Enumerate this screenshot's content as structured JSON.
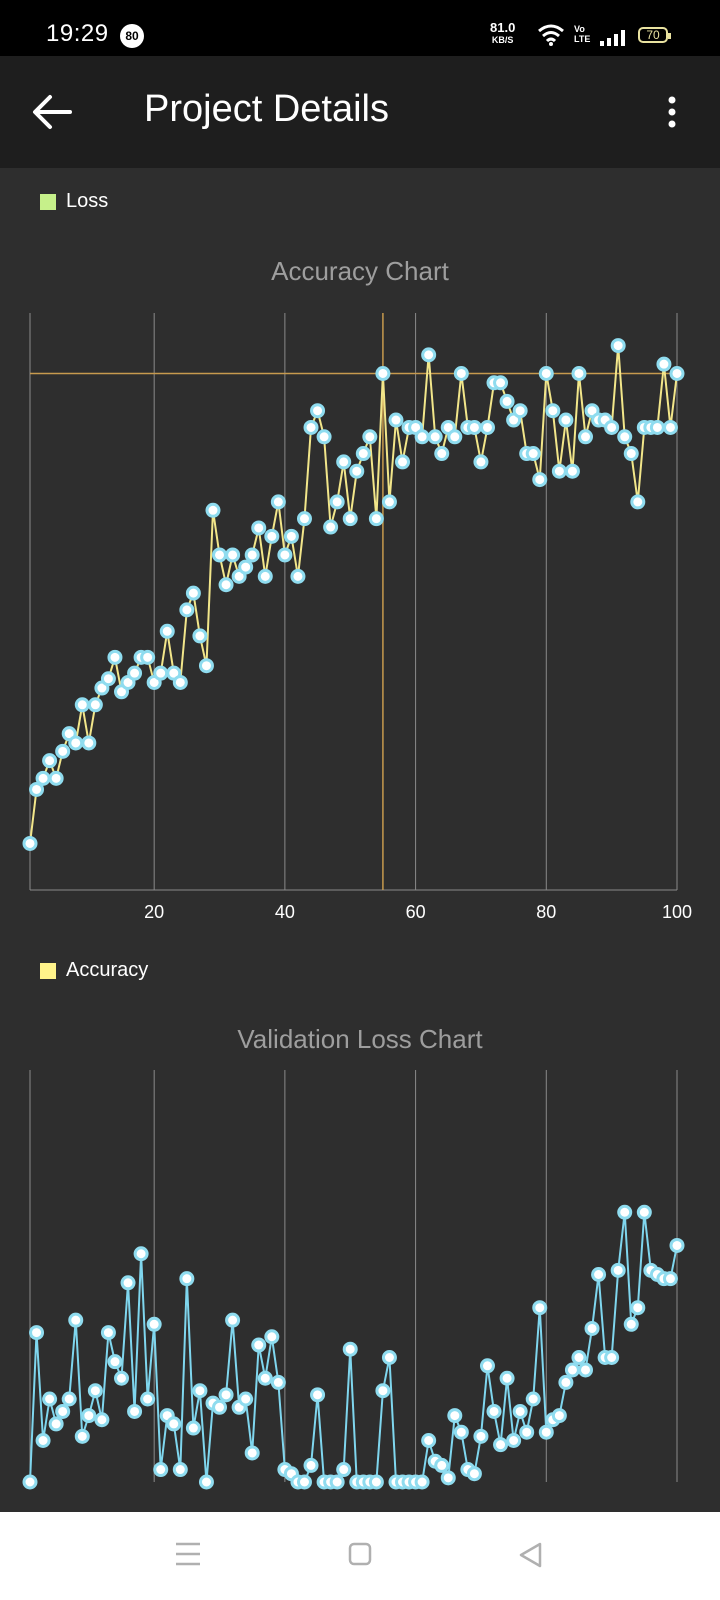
{
  "status_bar": {
    "time": "19:29",
    "notification_count": "80",
    "net_speed": "81.0",
    "net_speed_unit": "KB/S",
    "volte": "Vo\nLTE",
    "battery": "70"
  },
  "app_bar": {
    "title": "Project Details",
    "back_icon": "arrow-left-icon",
    "menu_icon": "more-vert-icon"
  },
  "legends": {
    "loss": {
      "label": "Loss",
      "color": "#c6f08a"
    },
    "accuracy": {
      "label": "Accuracy",
      "color": "#fff38a"
    }
  },
  "colors": {
    "accuracy_line": "#f2e68a",
    "validation_line": "#7fd6ee",
    "point_fill": "#ffffff",
    "point_ring": "#8fdcef",
    "highlight": "#c79a4e",
    "grid": "#8a8a8a"
  },
  "chart_data": [
    {
      "type": "line",
      "title": "Accuracy Chart",
      "xlabel": "",
      "ylabel": "",
      "xlim": [
        1,
        100
      ],
      "ylim": [
        0.285,
        0.905
      ],
      "x_ticks": [
        20,
        40,
        60,
        80,
        100
      ],
      "grid": "vertical",
      "highlight": {
        "x": 55,
        "y": 0.84
      },
      "series": [
        {
          "x": [
            1,
            2,
            3,
            4,
            5,
            6,
            7,
            8,
            9,
            10,
            11,
            12,
            13,
            14,
            15,
            16,
            17,
            18,
            19,
            20,
            21,
            22,
            23,
            24,
            25,
            26,
            27,
            28,
            29,
            30,
            31,
            32,
            33,
            34,
            35,
            36,
            37,
            38,
            39,
            40,
            41,
            42,
            43,
            44,
            45,
            46,
            47,
            48,
            49,
            50,
            51,
            52,
            53,
            54,
            55,
            56,
            57,
            58,
            59,
            60,
            61,
            62,
            63,
            64,
            65,
            66,
            67,
            68,
            69,
            70,
            71,
            72,
            73,
            74,
            75,
            76,
            77,
            78,
            79,
            80,
            81,
            82,
            83,
            84,
            85,
            86,
            87,
            88,
            89,
            90,
            91,
            92,
            93,
            94,
            95,
            96,
            97,
            98,
            99,
            100
          ],
          "values": [
            0.335,
            0.393,
            0.405,
            0.424,
            0.405,
            0.434,
            0.453,
            0.443,
            0.484,
            0.443,
            0.484,
            0.502,
            0.512,
            0.535,
            0.498,
            0.508,
            0.518,
            0.535,
            0.535,
            0.508,
            0.518,
            0.563,
            0.518,
            0.508,
            0.586,
            0.604,
            0.558,
            0.526,
            0.693,
            0.645,
            0.613,
            0.645,
            0.622,
            0.632,
            0.645,
            0.674,
            0.622,
            0.665,
            0.702,
            0.645,
            0.665,
            0.622,
            0.684,
            0.782,
            0.8,
            0.772,
            0.675,
            0.702,
            0.745,
            0.684,
            0.735,
            0.754,
            0.772,
            0.684,
            0.84,
            0.702,
            0.79,
            0.745,
            0.782,
            0.782,
            0.772,
            0.86,
            0.772,
            0.754,
            0.782,
            0.772,
            0.84,
            0.782,
            0.782,
            0.745,
            0.782,
            0.83,
            0.83,
            0.81,
            0.79,
            0.8,
            0.754,
            0.754,
            0.726,
            0.84,
            0.8,
            0.735,
            0.79,
            0.735,
            0.84,
            0.772,
            0.8,
            0.79,
            0.79,
            0.782,
            0.87,
            0.772,
            0.754,
            0.702,
            0.782,
            0.782,
            0.782,
            0.85,
            0.782,
            0.84
          ]
        }
      ]
    },
    {
      "type": "line",
      "title": "Validation Loss Chart",
      "xlabel": "",
      "ylabel": "",
      "xlim": [
        1,
        100
      ],
      "ylim": [
        0.0,
        1.0
      ],
      "grid": "vertical",
      "series": [
        {
          "x": [
            1,
            2,
            3,
            4,
            5,
            6,
            7,
            8,
            9,
            10,
            11,
            12,
            13,
            14,
            15,
            16,
            17,
            18,
            19,
            20,
            21,
            22,
            23,
            24,
            25,
            26,
            27,
            28,
            29,
            30,
            31,
            32,
            33,
            34,
            35,
            36,
            37,
            38,
            39,
            40,
            41,
            42,
            43,
            44,
            45,
            46,
            47,
            48,
            49,
            50,
            51,
            52,
            53,
            54,
            55,
            56,
            57,
            58,
            59,
            60,
            61,
            62,
            63,
            64,
            65,
            66,
            67,
            68,
            69,
            70,
            71,
            72,
            73,
            74,
            75,
            76,
            77,
            78,
            79,
            80,
            81,
            82,
            83,
            84,
            85,
            86,
            87,
            88,
            89,
            90,
            91,
            92,
            93,
            94,
            95,
            96,
            97,
            98,
            99,
            100
          ],
          "values": [
            0.0,
            0.36,
            0.1,
            0.2,
            0.14,
            0.17,
            0.2,
            0.39,
            0.11,
            0.16,
            0.22,
            0.15,
            0.36,
            0.29,
            0.25,
            0.48,
            0.17,
            0.55,
            0.2,
            0.38,
            0.03,
            0.16,
            0.14,
            0.03,
            0.49,
            0.13,
            0.22,
            0.0,
            0.19,
            0.18,
            0.21,
            0.39,
            0.18,
            0.2,
            0.07,
            0.33,
            0.25,
            0.35,
            0.24,
            0.03,
            0.02,
            0.0,
            0.0,
            0.04,
            0.21,
            0.0,
            0.0,
            0.0,
            0.03,
            0.32,
            0.0,
            0.0,
            0.0,
            0.0,
            0.22,
            0.3,
            0.0,
            0.0,
            0.0,
            0.0,
            0.0,
            0.1,
            0.05,
            0.04,
            0.01,
            0.16,
            0.12,
            0.03,
            0.02,
            0.11,
            0.28,
            0.17,
            0.09,
            0.25,
            0.1,
            0.17,
            0.12,
            0.2,
            0.42,
            0.12,
            0.15,
            0.16,
            0.24,
            0.27,
            0.3,
            0.27,
            0.37,
            0.5,
            0.3,
            0.3,
            0.51,
            0.65,
            0.38,
            0.42,
            0.65,
            0.51,
            0.5,
            0.49,
            0.49,
            0.57
          ]
        }
      ]
    }
  ]
}
